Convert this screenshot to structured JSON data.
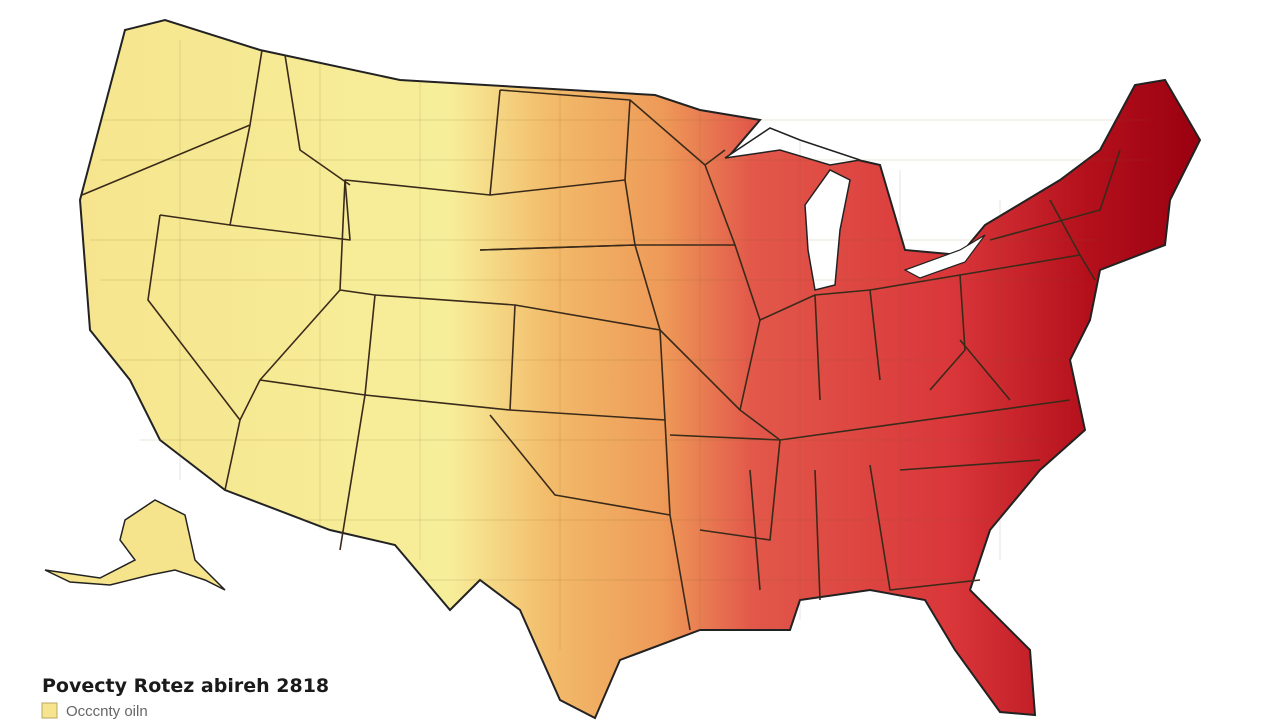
{
  "map": {
    "title": "Povecty Rotez abireh 2818",
    "legend": {
      "label": "Occcnty oiln"
    }
  }
}
